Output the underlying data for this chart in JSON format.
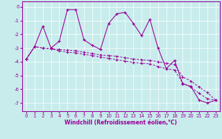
{
  "xlabel": "Windchill (Refroidissement éolien,°C)",
  "bg_color": "#c8ecec",
  "line_color": "#990099",
  "xlim": [
    -0.5,
    23.5
  ],
  "ylim": [
    -7.6,
    0.4
  ],
  "yticks": [
    0,
    -1,
    -2,
    -3,
    -4,
    -5,
    -6,
    -7
  ],
  "xticks": [
    0,
    1,
    2,
    3,
    4,
    5,
    6,
    7,
    8,
    9,
    10,
    11,
    12,
    13,
    14,
    15,
    16,
    17,
    18,
    19,
    20,
    21,
    22,
    23
  ],
  "series1_x": [
    0,
    1,
    2,
    3,
    4,
    5,
    6,
    7,
    8,
    9,
    10,
    11,
    12,
    13,
    14,
    15,
    16,
    17,
    18,
    19,
    20,
    21,
    22,
    23
  ],
  "series1_y": [
    -3.8,
    -2.9,
    -1.4,
    -3.0,
    -2.5,
    -0.2,
    -0.2,
    -2.4,
    -2.8,
    -3.1,
    -1.2,
    -0.5,
    -0.4,
    -1.2,
    -2.1,
    -0.9,
    -3.0,
    -4.5,
    -3.9,
    -5.6,
    -5.8,
    -6.8,
    -7.0,
    -6.8
  ],
  "series2_x": [
    0,
    1,
    2,
    3,
    4,
    5,
    6,
    7,
    8,
    9,
    10,
    11,
    12,
    13,
    14,
    15,
    16,
    17,
    18,
    19,
    20,
    21,
    22,
    23
  ],
  "series2_y": [
    -3.8,
    -2.9,
    -3.0,
    -3.05,
    -3.1,
    -3.15,
    -3.2,
    -3.3,
    -3.4,
    -3.5,
    -3.55,
    -3.6,
    -3.7,
    -3.8,
    -3.85,
    -3.9,
    -4.0,
    -4.1,
    -4.2,
    -5.1,
    -5.4,
    -5.85,
    -6.25,
    -6.8
  ],
  "series3_x": [
    0,
    1,
    2,
    3,
    4,
    5,
    6,
    7,
    8,
    9,
    10,
    11,
    12,
    13,
    14,
    15,
    16,
    17,
    18,
    19,
    20,
    21,
    22,
    23
  ],
  "series3_y": [
    -3.8,
    -2.9,
    -3.0,
    -3.05,
    -3.2,
    -3.3,
    -3.35,
    -3.45,
    -3.55,
    -3.65,
    -3.75,
    -3.85,
    -3.95,
    -4.05,
    -4.1,
    -4.15,
    -4.35,
    -4.5,
    -4.6,
    -5.55,
    -5.85,
    -6.3,
    -6.7,
    -6.8
  ]
}
